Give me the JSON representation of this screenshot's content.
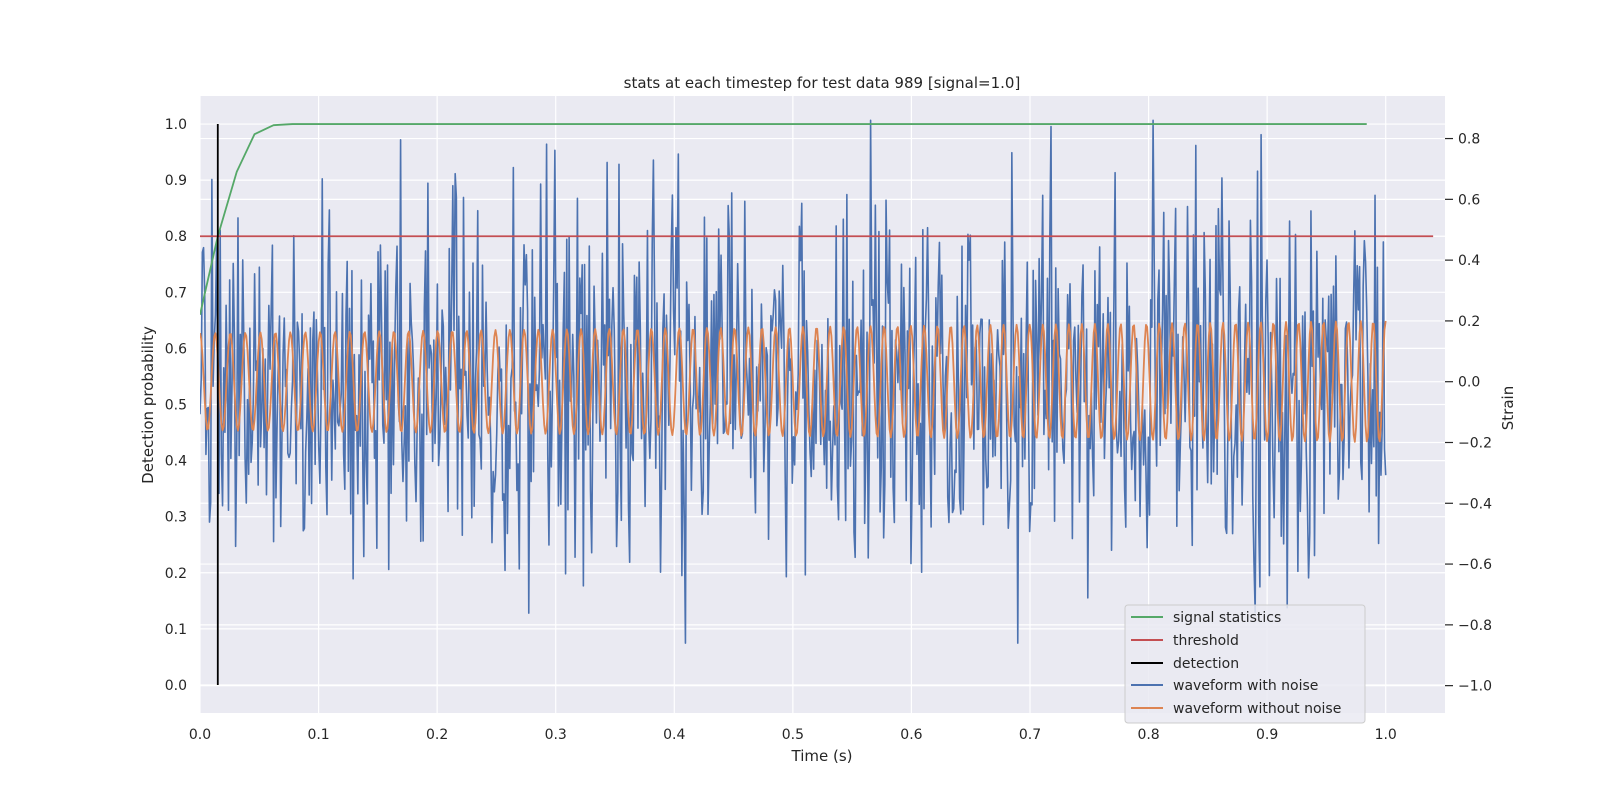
{
  "chart_data": {
    "type": "line",
    "title": "stats at each timestep for test data 989 [signal=1.0]",
    "xlabel": "Time (s)",
    "ylabel": "Detection probability",
    "y2label": "Strain",
    "xlim": [
      0.0,
      1.05
    ],
    "ylim": [
      -0.05,
      1.05
    ],
    "y2lim": [
      -1.09,
      0.94
    ],
    "grid": true,
    "legend_position": "bottom-right",
    "x_ticks": [
      "0.0",
      "0.1",
      "0.2",
      "0.3",
      "0.4",
      "0.5",
      "0.6",
      "0.7",
      "0.8",
      "0.9",
      "1.0"
    ],
    "y_ticks": [
      "0.0",
      "0.1",
      "0.2",
      "0.3",
      "0.4",
      "0.5",
      "0.6",
      "0.7",
      "0.8",
      "0.9",
      "1.0"
    ],
    "y2_ticks": [
      "−1.0",
      "−0.8",
      "−0.6",
      "−0.4",
      "−0.2",
      "0.0",
      "0.2",
      "0.4",
      "0.6",
      "0.8"
    ],
    "series": [
      {
        "name": "signal statistics",
        "axis": "left",
        "color": "#55a868",
        "x": [
          0.0,
          0.015,
          0.031,
          0.046,
          0.062,
          0.078,
          0.1,
          0.2,
          0.3,
          0.4,
          0.5,
          0.6,
          0.7,
          0.8,
          0.9,
          0.984
        ],
        "y": [
          0.66,
          0.8,
          0.915,
          0.982,
          0.998,
          1.0,
          1.0,
          1.0,
          1.0,
          1.0,
          1.0,
          1.0,
          1.0,
          1.0,
          1.0,
          1.0
        ]
      },
      {
        "name": "threshold",
        "axis": "left",
        "color": "#c44e52",
        "x": [
          0.0,
          1.04
        ],
        "y": [
          0.8,
          0.8
        ]
      },
      {
        "name": "detection",
        "axis": "left",
        "color": "#000000",
        "x": [
          0.015,
          0.015
        ],
        "y": [
          0.0,
          1.0
        ]
      },
      {
        "name": "waveform with noise",
        "axis": "right",
        "color": "#4c72b0",
        "generated": true,
        "x_range": [
          0.0,
          1.0
        ],
        "n_points": 1000,
        "amplitude_range": [
          -0.86,
          0.86
        ]
      },
      {
        "name": "waveform without noise",
        "axis": "right",
        "color": "#dd8452",
        "generated": true,
        "x_range": [
          0.0,
          1.0
        ],
        "n_points": 1000,
        "frequency_start_hz": 78,
        "frequency_end_hz": 96,
        "amplitude_start": 0.16,
        "amplitude_end": 0.2
      }
    ]
  }
}
